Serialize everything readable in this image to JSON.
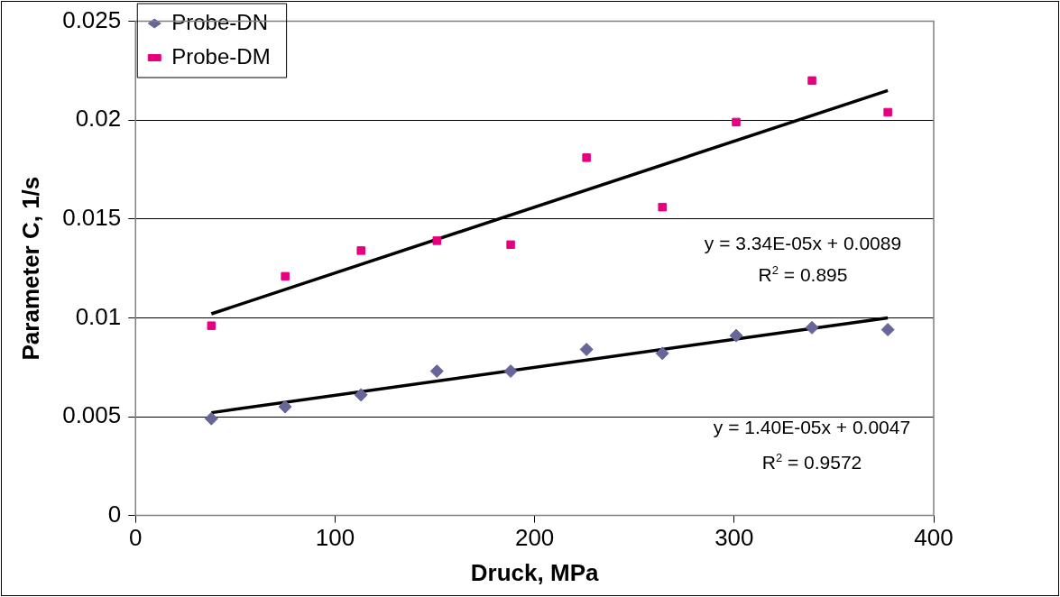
{
  "chart_data": {
    "type": "scatter",
    "xlabel": "Druck, MPa",
    "ylabel": "Parameter C, 1/s",
    "xlim": [
      0,
      400
    ],
    "xticks": [
      0,
      100,
      200,
      300,
      400
    ],
    "ylim": [
      0,
      0.025
    ],
    "yticks": [
      0,
      0.005,
      0.01,
      0.015,
      0.02,
      0.025
    ],
    "grid": "y",
    "legend": "top left",
    "series": [
      {
        "name": "Probe-DN",
        "marker": "diamond",
        "color": "#666699",
        "x": [
          38,
          75,
          113,
          151,
          188,
          226,
          264,
          301,
          339,
          377
        ],
        "values": [
          0.0049,
          0.0055,
          0.0061,
          0.0073,
          0.0073,
          0.0084,
          0.0082,
          0.0091,
          0.0095,
          0.0094
        ]
      },
      {
        "name": "Probe-DM",
        "marker": "square",
        "color": "#e6007e",
        "x": [
          38,
          75,
          113,
          151,
          188,
          226,
          264,
          301,
          339,
          377
        ],
        "values": [
          0.0096,
          0.0121,
          0.0134,
          0.0139,
          0.0137,
          0.0181,
          0.0156,
          0.0199,
          0.022,
          0.0204
        ]
      },
      {
        "type": "line",
        "marker": "none",
        "color": "#000000",
        "x": [
          38,
          377
        ],
        "values": [
          0.0102,
          0.0215
        ]
      },
      {
        "type": "line",
        "marker": "none",
        "color": "#000000",
        "x": [
          38,
          377
        ],
        "values": [
          0.0052,
          0.01
        ]
      }
    ],
    "annotations": [
      "y = 3.34E-05x + 0.0089",
      "R$^{2}$ = 0.895",
      "y = 1.40E-05x + 0.0047",
      "R$^{2}$ = 0.9572"
    ]
  }
}
